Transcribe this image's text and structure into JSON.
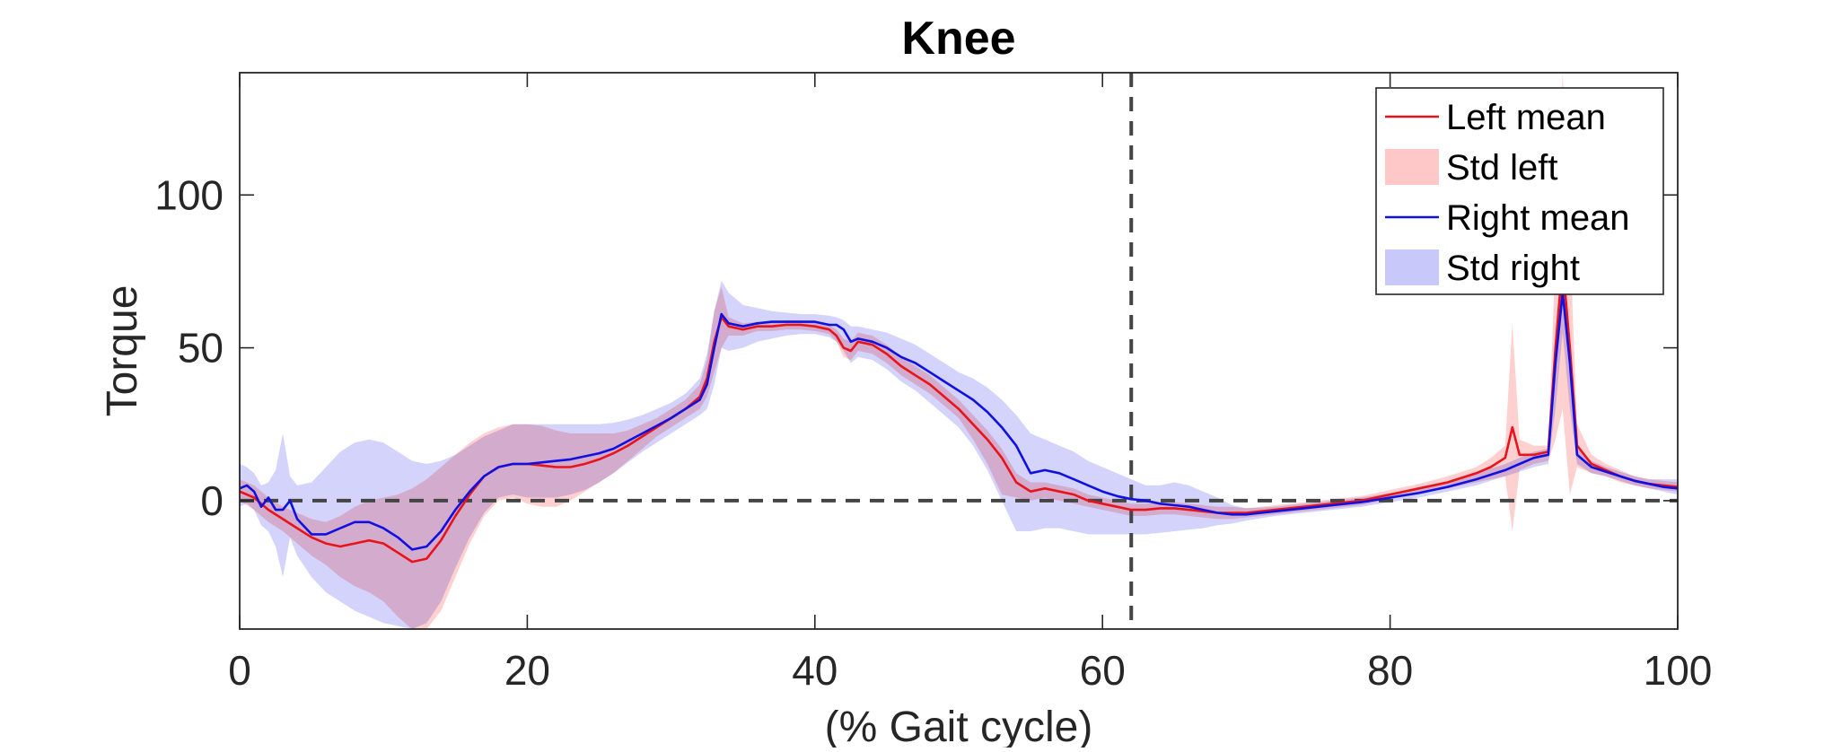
{
  "chart_data": {
    "type": "line",
    "title": "Knee",
    "xlabel": "(% Gait cycle)",
    "ylabel": "Torque",
    "xlim": [
      0,
      100
    ],
    "ylim": [
      -42,
      140
    ],
    "xticks": [
      0,
      20,
      40,
      60,
      80,
      100
    ],
    "yticks": [
      0,
      50,
      100
    ],
    "grid": false,
    "legend_position": "top-right",
    "reference_lines": {
      "horizontal_y": 0,
      "vertical_x": 62
    },
    "colors": {
      "left_mean": "#e8141c",
      "std_left": "#ffc8c8",
      "right_mean": "#1010e0",
      "std_right": "#c8c8fa",
      "reference": "#444444"
    },
    "legend": [
      {
        "key": "left_mean",
        "label": "Left mean",
        "kind": "line"
      },
      {
        "key": "std_left",
        "label": "Std left",
        "kind": "patch"
      },
      {
        "key": "right_mean",
        "label": "Right mean",
        "kind": "line"
      },
      {
        "key": "std_right",
        "label": "Std right",
        "kind": "patch"
      }
    ],
    "series": [
      {
        "key": "left_mean",
        "x": [
          0,
          1,
          2,
          3,
          4,
          5,
          6,
          7,
          8,
          9,
          10,
          11,
          12,
          13,
          14,
          15,
          16,
          17,
          18,
          19,
          20,
          21,
          22,
          23,
          24,
          25,
          26,
          27,
          28,
          29,
          30,
          31,
          32,
          32.5,
          33,
          33.5,
          34,
          35,
          36,
          37,
          38,
          39,
          40,
          41,
          41.5,
          42,
          42.5,
          43,
          44,
          45,
          46,
          47,
          48,
          49,
          50,
          51,
          52,
          53,
          54,
          55,
          56,
          57,
          58,
          59,
          60,
          61,
          62,
          63,
          64,
          65,
          66,
          67,
          68,
          69,
          70,
          72,
          74,
          76,
          78,
          80,
          82,
          84,
          86,
          87,
          88,
          88.5,
          89,
          90,
          91,
          91.5,
          92,
          92.5,
          93,
          94,
          95,
          96,
          97,
          98,
          99,
          100
        ],
        "values": [
          3,
          1,
          -3,
          -6,
          -9,
          -12,
          -14,
          -15,
          -14,
          -13,
          -14,
          -17,
          -20,
          -19,
          -13,
          -5,
          2,
          8,
          11,
          12,
          12,
          11.5,
          11,
          11,
          12,
          13.5,
          15.5,
          18,
          21,
          24,
          27,
          30,
          34,
          40,
          52,
          60,
          57,
          56,
          57,
          57,
          57.5,
          57.5,
          57,
          56,
          54,
          50,
          49,
          52,
          51,
          48,
          44,
          41,
          38,
          34,
          30,
          25,
          20,
          14,
          6,
          3,
          4,
          3,
          2,
          0,
          -1,
          -2,
          -3,
          -3,
          -2.5,
          -2.5,
          -3,
          -3.5,
          -4,
          -4,
          -4,
          -3,
          -2,
          -1,
          0,
          2,
          4,
          6,
          9,
          11,
          14,
          24,
          15,
          15,
          16,
          50,
          78,
          50,
          18,
          12,
          10,
          8,
          6.5,
          5.5,
          5,
          4.5
        ]
      },
      {
        "key": "std_left",
        "x": [
          0,
          1,
          2,
          3,
          4,
          5,
          6,
          7,
          8,
          9,
          10,
          11,
          12,
          13,
          14,
          15,
          16,
          17,
          18,
          19,
          20,
          21,
          22,
          23,
          24,
          25,
          26,
          27,
          28,
          29,
          30,
          31,
          32,
          32.5,
          33,
          33.5,
          34,
          35,
          36,
          37,
          38,
          39,
          40,
          41,
          41.5,
          42,
          42.5,
          43,
          44,
          45,
          46,
          47,
          48,
          49,
          50,
          51,
          52,
          53,
          54,
          55,
          56,
          57,
          58,
          59,
          60,
          61,
          62,
          63,
          64,
          65,
          66,
          67,
          68,
          69,
          70,
          72,
          74,
          76,
          78,
          80,
          82,
          84,
          86,
          87,
          88,
          88.5,
          89,
          90,
          91,
          91.5,
          92,
          92.5,
          93,
          94,
          95,
          96,
          97,
          98,
          99,
          100
        ],
        "upper": [
          7,
          5,
          1,
          -2,
          -4,
          -6,
          -7,
          -5,
          -2,
          0,
          1,
          2,
          4,
          7,
          11,
          15,
          19,
          22,
          24,
          25,
          25,
          24.5,
          23,
          22,
          22,
          22,
          22,
          23,
          25,
          27,
          30,
          33,
          38,
          46,
          62,
          70,
          60,
          58,
          58.5,
          58.5,
          59,
          59,
          58.5,
          57.5,
          56,
          53,
          52,
          55,
          54,
          51,
          47,
          44,
          41,
          37,
          33,
          28,
          23,
          17,
          9,
          6,
          6,
          5,
          4,
          2,
          1,
          0,
          -1,
          -1,
          -0.5,
          -0.5,
          -1,
          -1.5,
          -2,
          -2,
          -2.5,
          -1.5,
          -0.5,
          0.5,
          1.5,
          3.5,
          5.5,
          8,
          11,
          14,
          18,
          58,
          20,
          18,
          18,
          80,
          140,
          85,
          25,
          15,
          12,
          10,
          8,
          7,
          6.5,
          6
        ],
        "lower": [
          0,
          -3,
          -7,
          -10,
          -14,
          -18,
          -21,
          -25,
          -28,
          -30,
          -33,
          -38,
          -42,
          -42,
          -36,
          -25,
          -14,
          -5,
          0,
          1,
          -1,
          -2,
          -2,
          0,
          3,
          6,
          9,
          13,
          17,
          21,
          24,
          27,
          30,
          34,
          42,
          50,
          54,
          54,
          55.5,
          55.5,
          56,
          56,
          55.5,
          54.5,
          52,
          47,
          46,
          49,
          48,
          45,
          41,
          38,
          35,
          31,
          27,
          20,
          12,
          2,
          1,
          0,
          1,
          0,
          -1,
          -2,
          -3,
          -4,
          -5,
          -5,
          -4.5,
          -4.5,
          -5,
          -5.5,
          -6,
          -6,
          -5.5,
          -4.5,
          -3.5,
          -2.5,
          -1.5,
          0.5,
          2.5,
          4,
          6,
          7,
          8,
          -10,
          10,
          12,
          13,
          20,
          30,
          2,
          11,
          9,
          8,
          6,
          5,
          4,
          3.5,
          3
        ]
      },
      {
        "key": "right_mean",
        "x": [
          0,
          0.5,
          1,
          1.5,
          2,
          2.5,
          3,
          3.5,
          4,
          5,
          6,
          7,
          8,
          9,
          10,
          11,
          12,
          13,
          14,
          15,
          16,
          17,
          18,
          19,
          20,
          21,
          22,
          23,
          24,
          25,
          26,
          27,
          28,
          29,
          30,
          31,
          32,
          32.5,
          33,
          33.5,
          34,
          35,
          36,
          37,
          38,
          39,
          40,
          41,
          41.5,
          42,
          42.5,
          43,
          44,
          45,
          46,
          47,
          48,
          49,
          50,
          51,
          52,
          53,
          54,
          55,
          56,
          57,
          58,
          59,
          60,
          61,
          62,
          63,
          64,
          65,
          66,
          67,
          68,
          69,
          70,
          72,
          74,
          76,
          78,
          80,
          82,
          84,
          86,
          87,
          88,
          89,
          90,
          91,
          91.5,
          92,
          92.5,
          93,
          94,
          95,
          96,
          97,
          98,
          99,
          100
        ],
        "values": [
          4,
          5,
          3,
          -2,
          1,
          -3,
          -3,
          0,
          -6,
          -11,
          -11,
          -9,
          -7,
          -7,
          -9,
          -12,
          -16,
          -15,
          -10,
          -3,
          3,
          8,
          11,
          12,
          12,
          12.5,
          13,
          13.5,
          14.5,
          15.5,
          17,
          19.5,
          22,
          24.5,
          27,
          30,
          33,
          38,
          50,
          61,
          58,
          57,
          58,
          58.5,
          58.5,
          58.5,
          58.5,
          57.5,
          57.5,
          56,
          52,
          53,
          52,
          50,
          47,
          45,
          42,
          39,
          36,
          33,
          29,
          24,
          18,
          9,
          10,
          9,
          7,
          5,
          3,
          1.5,
          0.5,
          0,
          -1,
          -1.5,
          -2,
          -3,
          -4,
          -4.5,
          -4.5,
          -3.5,
          -2.5,
          -1.5,
          -0.5,
          1,
          2.5,
          4.5,
          7,
          8.5,
          10,
          12,
          14,
          15,
          45,
          68,
          45,
          15,
          11,
          9.5,
          8,
          6.5,
          5.5,
          4.5,
          4
        ]
      },
      {
        "key": "std_right",
        "x": [
          0,
          0.5,
          1,
          1.5,
          2,
          2.5,
          3,
          3.5,
          4,
          5,
          6,
          7,
          8,
          9,
          10,
          11,
          12,
          13,
          14,
          15,
          16,
          17,
          18,
          19,
          20,
          21,
          22,
          23,
          24,
          25,
          26,
          27,
          28,
          29,
          30,
          31,
          32,
          32.5,
          33,
          33.5,
          34,
          35,
          36,
          37,
          38,
          39,
          40,
          41,
          41.5,
          42,
          42.5,
          43,
          44,
          45,
          46,
          47,
          48,
          49,
          50,
          51,
          52,
          53,
          54,
          55,
          56,
          57,
          58,
          59,
          60,
          61,
          62,
          63,
          64,
          65,
          66,
          67,
          68,
          69,
          70,
          72,
          74,
          76,
          78,
          80,
          82,
          84,
          86,
          87,
          88,
          89,
          90,
          91,
          91.5,
          92,
          92.5,
          93,
          94,
          95,
          96,
          97,
          98,
          99,
          100
        ],
        "upper": [
          12,
          11,
          9,
          5,
          6,
          10,
          22,
          8,
          5,
          6,
          11,
          16,
          19,
          20,
          19,
          16,
          13,
          12,
          13,
          15,
          18,
          21,
          23,
          25,
          25,
          25,
          25,
          25,
          25,
          25,
          25.5,
          26.5,
          28,
          30,
          32,
          35,
          40,
          48,
          62,
          72,
          68,
          64,
          63,
          62,
          61.5,
          61,
          61,
          60.5,
          60,
          59,
          57,
          57,
          56,
          55,
          53,
          51,
          48,
          45,
          42,
          40,
          37,
          33,
          28,
          22,
          20,
          18,
          16,
          13,
          11,
          9,
          7,
          5,
          5,
          6,
          5,
          3,
          1,
          -1.5,
          -2.5,
          -2,
          -1,
          0,
          1,
          2.5,
          4,
          6,
          9,
          10.5,
          12,
          14,
          16,
          17,
          55,
          75,
          50,
          17,
          13,
          11,
          9.5,
          8,
          7,
          7,
          7
        ],
        "lower": [
          -2,
          -1,
          -3,
          -8,
          -10,
          -15,
          -25,
          -12,
          -18,
          -25,
          -30,
          -33,
          -36,
          -38,
          -40,
          -41,
          -42,
          -40,
          -33,
          -22,
          -12,
          -4,
          1,
          2,
          1,
          1,
          1,
          2,
          3.5,
          6,
          9,
          12.5,
          16,
          19,
          22,
          25,
          28,
          30,
          38,
          50,
          49,
          50,
          52,
          53,
          54,
          54.5,
          54.5,
          53.5,
          52,
          49,
          45,
          47,
          46,
          43,
          39,
          36,
          32,
          28,
          24,
          18,
          10,
          0,
          -10,
          -10,
          -9,
          -9,
          -10,
          -11,
          -11,
          -11,
          -11,
          -11,
          -10.5,
          -10,
          -9.5,
          -9,
          -8,
          -7.5,
          -6.5,
          -5,
          -4,
          -3,
          -2,
          -0.5,
          1,
          3,
          5,
          6.5,
          8,
          9.5,
          11,
          12,
          30,
          55,
          30,
          12,
          9,
          8,
          6.5,
          5,
          4,
          3,
          2
        ]
      }
    ]
  }
}
